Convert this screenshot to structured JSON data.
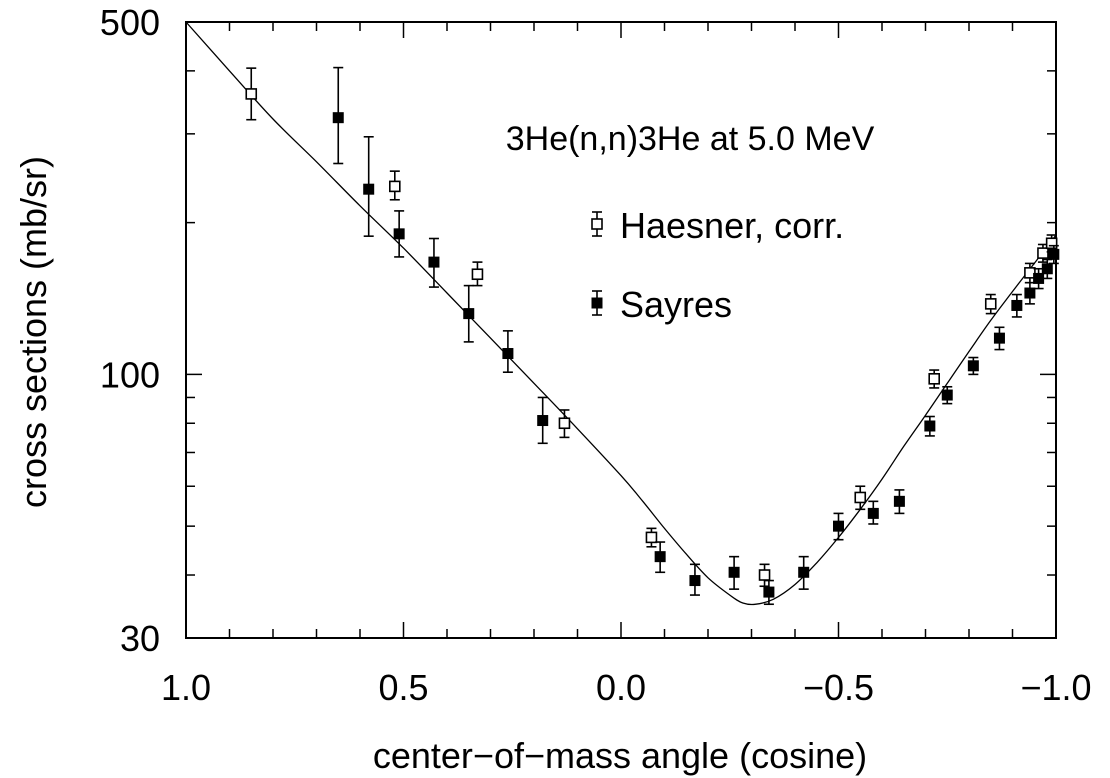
{
  "chart_data": {
    "type": "scatter",
    "title": "3He(n,n)3He at 5.0 MeV",
    "xlabel": "center−of−mass angle (cosine)",
    "ylabel": "cross sections (mb/sr)",
    "xlim": [
      1.0,
      -1.0
    ],
    "ylim": [
      30,
      500
    ],
    "yscale": "log",
    "grid": false,
    "legend_position": "upper-center",
    "x_ticks": [
      {
        "value": 1.0,
        "label": "1.0"
      },
      {
        "value": 0.5,
        "label": "0.5"
      },
      {
        "value": 0.0,
        "label": "0.0"
      },
      {
        "value": -0.5,
        "label": "−0.5"
      },
      {
        "value": -1.0,
        "label": "−1.0"
      }
    ],
    "y_ticks": [
      {
        "value": 30,
        "label": "30"
      },
      {
        "value": 100,
        "label": "100"
      },
      {
        "value": 500,
        "label": "500"
      }
    ],
    "series": [
      {
        "name": "Haesner, corr.",
        "marker": "open-square",
        "points": [
          {
            "x": 0.85,
            "y": 360,
            "ylo": 320,
            "yhi": 405
          },
          {
            "x": 0.52,
            "y": 236,
            "ylo": 222,
            "yhi": 253
          },
          {
            "x": 0.33,
            "y": 158,
            "ylo": 150,
            "yhi": 167
          },
          {
            "x": 0.13,
            "y": 80,
            "ylo": 75,
            "yhi": 85
          },
          {
            "x": -0.07,
            "y": 47.5,
            "ylo": 45.5,
            "yhi": 49.5
          },
          {
            "x": -0.33,
            "y": 40,
            "ylo": 38,
            "yhi": 42
          },
          {
            "x": -0.55,
            "y": 57,
            "ylo": 54,
            "yhi": 60
          },
          {
            "x": -0.72,
            "y": 98,
            "ylo": 94,
            "yhi": 102
          },
          {
            "x": -0.85,
            "y": 138,
            "ylo": 132,
            "yhi": 144
          },
          {
            "x": -0.94,
            "y": 159,
            "ylo": 152,
            "yhi": 166
          },
          {
            "x": -0.97,
            "y": 174,
            "ylo": 167,
            "yhi": 181
          },
          {
            "x": -0.99,
            "y": 182,
            "ylo": 175,
            "yhi": 189
          }
        ]
      },
      {
        "name": "Sayres",
        "marker": "filled-square",
        "points": [
          {
            "x": 0.65,
            "y": 323,
            "ylo": 262,
            "yhi": 406
          },
          {
            "x": 0.58,
            "y": 233,
            "ylo": 188,
            "yhi": 296
          },
          {
            "x": 0.51,
            "y": 190,
            "ylo": 171,
            "yhi": 211
          },
          {
            "x": 0.43,
            "y": 167,
            "ylo": 149,
            "yhi": 186
          },
          {
            "x": 0.35,
            "y": 132,
            "ylo": 116,
            "yhi": 150
          },
          {
            "x": 0.26,
            "y": 110,
            "ylo": 101,
            "yhi": 122
          },
          {
            "x": 0.18,
            "y": 81,
            "ylo": 73,
            "yhi": 90
          },
          {
            "x": -0.09,
            "y": 43.5,
            "ylo": 40.5,
            "yhi": 46.5
          },
          {
            "x": -0.17,
            "y": 39,
            "ylo": 36.5,
            "yhi": 42
          },
          {
            "x": -0.26,
            "y": 40.5,
            "ylo": 37.5,
            "yhi": 43.5
          },
          {
            "x": -0.34,
            "y": 37,
            "ylo": 35,
            "yhi": 39
          },
          {
            "x": -0.42,
            "y": 40.5,
            "ylo": 37.5,
            "yhi": 43.5
          },
          {
            "x": -0.5,
            "y": 50,
            "ylo": 47,
            "yhi": 53
          },
          {
            "x": -0.58,
            "y": 53,
            "ylo": 50.5,
            "yhi": 56
          },
          {
            "x": -0.64,
            "y": 56,
            "ylo": 53,
            "yhi": 59
          },
          {
            "x": -0.71,
            "y": 79,
            "ylo": 75.5,
            "yhi": 82.5
          },
          {
            "x": -0.75,
            "y": 91,
            "ylo": 87.5,
            "yhi": 94.5
          },
          {
            "x": -0.81,
            "y": 104,
            "ylo": 100,
            "yhi": 108
          },
          {
            "x": -0.87,
            "y": 118,
            "ylo": 112,
            "yhi": 124
          },
          {
            "x": -0.91,
            "y": 137,
            "ylo": 130,
            "yhi": 144
          },
          {
            "x": -0.94,
            "y": 145,
            "ylo": 138,
            "yhi": 152
          },
          {
            "x": -0.96,
            "y": 155,
            "ylo": 148,
            "yhi": 162
          },
          {
            "x": -0.98,
            "y": 162,
            "ylo": 155,
            "yhi": 169
          },
          {
            "x": -0.995,
            "y": 173,
            "ylo": 166,
            "yhi": 180
          }
        ]
      },
      {
        "name": "",
        "marker": "none",
        "style": "line",
        "points": [
          {
            "x": 1.0,
            "y": 500
          },
          {
            "x": 0.9,
            "y": 400
          },
          {
            "x": 0.8,
            "y": 321
          },
          {
            "x": 0.7,
            "y": 264
          },
          {
            "x": 0.6,
            "y": 216
          },
          {
            "x": 0.5,
            "y": 178
          },
          {
            "x": 0.4,
            "y": 145
          },
          {
            "x": 0.3,
            "y": 118
          },
          {
            "x": 0.2,
            "y": 96
          },
          {
            "x": 0.1,
            "y": 78
          },
          {
            "x": 0.0,
            "y": 63
          },
          {
            "x": -0.05,
            "y": 56
          },
          {
            "x": -0.1,
            "y": 49.5
          },
          {
            "x": -0.15,
            "y": 44
          },
          {
            "x": -0.2,
            "y": 39.5
          },
          {
            "x": -0.25,
            "y": 36.5
          },
          {
            "x": -0.28,
            "y": 35.2
          },
          {
            "x": -0.31,
            "y": 35.0
          },
          {
            "x": -0.35,
            "y": 35.8
          },
          {
            "x": -0.4,
            "y": 38.3
          },
          {
            "x": -0.45,
            "y": 42.3
          },
          {
            "x": -0.5,
            "y": 47.5
          },
          {
            "x": -0.55,
            "y": 54
          },
          {
            "x": -0.6,
            "y": 62
          },
          {
            "x": -0.65,
            "y": 72
          },
          {
            "x": -0.7,
            "y": 83
          },
          {
            "x": -0.75,
            "y": 96
          },
          {
            "x": -0.8,
            "y": 111
          },
          {
            "x": -0.85,
            "y": 128
          },
          {
            "x": -0.9,
            "y": 146
          },
          {
            "x": -0.95,
            "y": 166
          },
          {
            "x": -1.0,
            "y": 189
          }
        ]
      }
    ]
  }
}
